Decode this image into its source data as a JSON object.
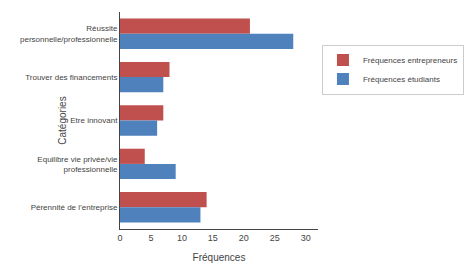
{
  "chart_data": {
    "type": "bar",
    "orientation": "horizontal",
    "categories": [
      "Réussite\npersonnelle/professionnelle",
      "Trouver des financements",
      "Etre innovant",
      "Equilibre vie privée/vie\nprofessionnelle",
      "Pérennité de l’entreprise"
    ],
    "series": [
      {
        "name": "Fréquences entrepreneurs",
        "color": "#C0504D",
        "values": [
          21,
          8,
          7,
          4,
          14
        ]
      },
      {
        "name": "Fréquences étudiants",
        "color": "#4F81BD",
        "values": [
          28,
          7,
          6,
          9,
          13
        ]
      }
    ],
    "xlabel": "Fréquences",
    "ylabel": "Catégories",
    "xlim": [
      0,
      32
    ],
    "xticks": [
      0,
      5,
      10,
      15,
      20,
      25,
      30
    ],
    "grid": false,
    "legend": "right"
  }
}
